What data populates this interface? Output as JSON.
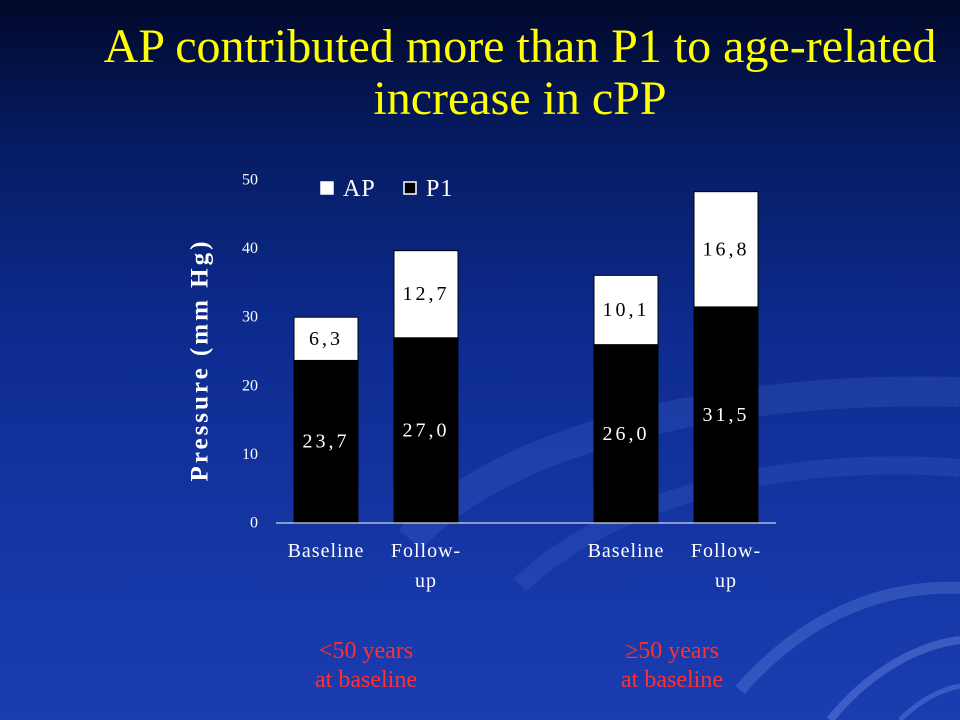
{
  "slide": {
    "title": "AP contributed more than P1 to age-related increase in cPP",
    "title_color": "#ffff00",
    "group_label_color": "#ff3030",
    "background_color": "#10309a"
  },
  "chart_data": {
    "type": "bar",
    "stacked": true,
    "categories": [
      "Baseline",
      "Follow-up",
      "Baseline",
      "Follow-up"
    ],
    "groups": [
      {
        "label_lines": [
          "<50 years",
          "at baseline"
        ],
        "categories": [
          0,
          1
        ]
      },
      {
        "label_lines": [
          "≥50 years",
          "at baseline"
        ],
        "categories": [
          2,
          3
        ]
      }
    ],
    "series": [
      {
        "name": "P1",
        "color": "#000000",
        "label_color": "#ffffff",
        "values": [
          23.7,
          27.0,
          26.0,
          31.5
        ],
        "data_labels": [
          "23,7",
          "27,0",
          "26,0",
          "31,5"
        ]
      },
      {
        "name": "AP",
        "color": "#ffffff",
        "label_color": "#000000",
        "values": [
          6.3,
          12.7,
          10.1,
          16.8
        ],
        "data_labels": [
          "6,3",
          "12,7",
          "10,1",
          "16,8"
        ]
      }
    ],
    "ylabel": "Pressure (mm Hg)",
    "ylim": [
      0,
      50
    ],
    "yticks": [
      0,
      10,
      20,
      30,
      40,
      50
    ],
    "grid": false,
    "legend": "top-left"
  }
}
